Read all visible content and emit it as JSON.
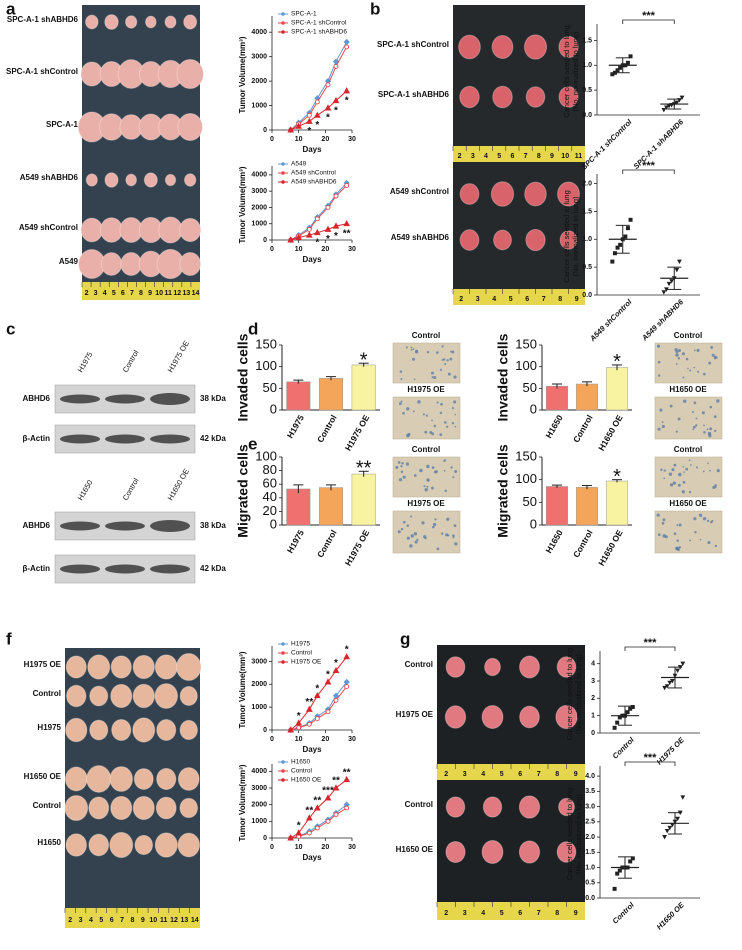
{
  "panel_labels": [
    "a",
    "b",
    "c",
    "d",
    "e",
    "f",
    "g"
  ],
  "photos": [
    {
      "labels": [
        "SPC-A-1 shABHD6",
        "SPC-A-1 shControl",
        "SPC-A-1",
        "A549 shABHD6",
        "A549 shControl",
        "A549"
      ],
      "ruler": [
        2,
        3,
        4,
        5,
        6,
        7,
        8,
        9,
        10,
        11,
        12,
        13,
        14
      ]
    },
    {
      "labels": [
        "SPC-A-1 shControl",
        "SPC-A-1 shABHD6"
      ],
      "ruler": [
        2,
        3,
        4,
        5,
        6,
        7,
        8,
        9,
        10,
        11
      ]
    },
    {
      "labels": [
        "A549 shControl",
        "A549 shABHD6"
      ],
      "ruler": [
        2,
        3,
        4,
        5,
        6,
        7,
        8,
        9
      ]
    },
    {
      "labels": [
        "H1975 OE",
        "Control",
        "H1975",
        "H1650 OE",
        "Control",
        "H1650"
      ],
      "ruler": [
        2,
        3,
        4,
        5,
        6,
        7,
        8,
        9,
        10,
        11,
        12,
        13,
        14
      ]
    },
    {
      "labels": [
        "Control",
        "H1975 OE"
      ],
      "ruler": [
        2,
        3,
        4,
        5,
        6,
        7,
        8,
        9
      ]
    },
    {
      "labels": [
        "Control",
        "H1650 OE"
      ],
      "ruler": [
        2,
        3,
        4,
        5,
        6,
        7,
        8,
        9
      ]
    }
  ],
  "blots": [
    {
      "lanes": [
        "H1975",
        "Control",
        "H1975 OE"
      ],
      "rows": [
        {
          "protein": "ABHD6",
          "size": "38 kDa"
        },
        {
          "protein": "β-Actin",
          "size": "42 kDa"
        }
      ]
    },
    {
      "lanes": [
        "H1650",
        "Control",
        "H1650 OE"
      ],
      "rows": [
        {
          "protein": "ABHD6",
          "size": "38 kDa"
        },
        {
          "protein": "β-Actin",
          "size": "42 kDa"
        }
      ]
    }
  ],
  "micrographs": [
    {
      "labels": [
        "Control",
        "H1975 OE"
      ]
    },
    {
      "labels": [
        "Control",
        "H1650 OE"
      ]
    },
    {
      "labels": [
        "Control",
        "H1975 OE"
      ]
    },
    {
      "labels": [
        "Control",
        "H1650 OE"
      ]
    }
  ],
  "chart_data": [
    {
      "type": "line",
      "ylabel": "Tumor Volume(mm³)",
      "xlabel": "Days",
      "x": [
        7,
        10,
        14,
        17,
        21,
        24,
        28
      ],
      "xlim": [
        0,
        30
      ],
      "xticks": [
        0,
        10,
        20,
        30
      ],
      "ylim": [
        0,
        4500
      ],
      "yticks": [
        0,
        1000,
        2000,
        3000,
        4000
      ],
      "series": [
        {
          "name": "SPC-A-1",
          "color": "#5b9bd5",
          "marker": "diamond",
          "values": [
            0,
            300,
            700,
            1300,
            2000,
            2800,
            3600
          ]
        },
        {
          "name": "SPC-A-1 shControl",
          "color": "#e8474c",
          "marker": "circle",
          "values": [
            0,
            250,
            600,
            1150,
            1850,
            2600,
            3400
          ]
        },
        {
          "name": "SPC-A-1 shABHD6",
          "color": "#d9262c",
          "marker": "triangle",
          "values": [
            0,
            150,
            350,
            600,
            900,
            1200,
            1600
          ],
          "significance": [
            null,
            null,
            "*",
            "*",
            "*",
            "*",
            "*"
          ]
        }
      ]
    },
    {
      "type": "line",
      "ylabel": "Tumor Volume(mm³)",
      "xlabel": "Days",
      "x": [
        7,
        10,
        14,
        17,
        21,
        24,
        28
      ],
      "xlim": [
        0,
        30
      ],
      "xticks": [
        0,
        10,
        20,
        30
      ],
      "ylim": [
        0,
        4300
      ],
      "yticks": [
        0,
        1000,
        2000,
        3000,
        4000
      ],
      "series": [
        {
          "name": "A549",
          "color": "#5b9bd5",
          "marker": "diamond",
          "values": [
            0,
            300,
            750,
            1400,
            2100,
            2800,
            3500
          ]
        },
        {
          "name": "A549 shControl",
          "color": "#e8474c",
          "marker": "circle",
          "values": [
            0,
            250,
            650,
            1300,
            2000,
            2700,
            3350
          ]
        },
        {
          "name": "A549 shABHD6",
          "color": "#d9262c",
          "marker": "triangle",
          "values": [
            0,
            150,
            300,
            450,
            650,
            850,
            1000
          ],
          "significance": [
            null,
            null,
            null,
            "*",
            "*",
            "*",
            "**"
          ]
        }
      ]
    },
    {
      "type": "dot",
      "ylabel": [
        "Cancer cells seeded to lung",
        "(No. normalized to lung)"
      ],
      "categories": [
        "SPC-A-1 shControl",
        "SPC-A-1 shABHD6"
      ],
      "points": [
        [
          0.82,
          0.85,
          0.9,
          0.95,
          1.0,
          1.0,
          1.05,
          1.18
        ],
        [
          0.1,
          0.15,
          0.18,
          0.2,
          0.22,
          0.25,
          0.3,
          0.35
        ]
      ],
      "means": [
        1.0,
        0.22
      ],
      "sd": [
        0.15,
        0.1
      ],
      "ylim": [
        0,
        1.75
      ],
      "yticks": [
        {
          "value": 0,
          "label": "0.0"
        },
        0.5,
        {
          "value": 1,
          "label": "1.0"
        },
        1.5
      ],
      "significance": "***"
    },
    {
      "type": "dot",
      "ylabel": [
        "Cancer cells seeded to lung",
        "(No. normalized to lung)"
      ],
      "categories": [
        "A549 shControl",
        "A549 shABHD6"
      ],
      "points": [
        [
          0.6,
          0.75,
          0.85,
          0.9,
          1.0,
          1.05,
          1.2,
          1.35
        ],
        [
          0.05,
          0.1,
          0.2,
          0.25,
          0.3,
          0.45,
          0.6
        ]
      ],
      "means": [
        1.0,
        0.3
      ],
      "sd": [
        0.25,
        0.2
      ],
      "ylim": [
        0,
        2.1
      ],
      "yticks": [
        {
          "value": 0,
          "label": "0.0"
        },
        0.5,
        {
          "value": 1,
          "label": "1.0"
        },
        1.5,
        {
          "value": 2,
          "label": "2.0"
        }
      ],
      "significance": "***"
    },
    {
      "type": "bar",
      "ylabel": "Invaded cells",
      "categories": [
        "H1975",
        "Control",
        "H1975 OE"
      ],
      "values": [
        65,
        73,
        104
      ],
      "errors": [
        4,
        4,
        4
      ],
      "colors": [
        "#f07070",
        "#f5a55a",
        "#f7f3a0"
      ],
      "ylim": [
        0,
        150
      ],
      "yticks": [
        0,
        50,
        100,
        150
      ],
      "significance": [
        null,
        null,
        "*"
      ]
    },
    {
      "type": "bar",
      "ylabel": "Invaded cells",
      "categories": [
        "H1650",
        "Control",
        "H1650 OE"
      ],
      "values": [
        55,
        60,
        98
      ],
      "errors": [
        5,
        5,
        6
      ],
      "colors": [
        "#f07070",
        "#f5a55a",
        "#f7f3a0"
      ],
      "ylim": [
        0,
        150
      ],
      "yticks": [
        0,
        50,
        100,
        150
      ],
      "significance": [
        null,
        null,
        "*"
      ]
    },
    {
      "type": "bar",
      "ylabel": "Migrated cells",
      "categories": [
        "H1975",
        "Control",
        "H1975 OE"
      ],
      "values": [
        53,
        55,
        75
      ],
      "errors": [
        6,
        4,
        4
      ],
      "colors": [
        "#f07070",
        "#f5a55a",
        "#f7f3a0"
      ],
      "ylim": [
        0,
        100
      ],
      "yticks": [
        0,
        20,
        40,
        60,
        80,
        100
      ],
      "significance": [
        null,
        null,
        "**"
      ]
    },
    {
      "type": "bar",
      "ylabel": "Migrated cells",
      "categories": [
        "H1650",
        "Control",
        "H1650 OE"
      ],
      "values": [
        85,
        83,
        97
      ],
      "errors": [
        3,
        4,
        3
      ],
      "colors": [
        "#f07070",
        "#f5a55a",
        "#f7f3a0"
      ],
      "ylim": [
        0,
        150
      ],
      "yticks": [
        0,
        50,
        100,
        150
      ],
      "significance": [
        null,
        null,
        "*"
      ]
    },
    {
      "type": "line",
      "ylabel": "Tumor Volume(mm³)",
      "xlabel": "Days",
      "x": [
        7,
        10,
        14,
        17,
        21,
        24,
        28
      ],
      "xlim": [
        0,
        30
      ],
      "xticks": [
        0,
        10,
        20,
        30
      ],
      "ylim": [
        0,
        3500
      ],
      "yticks": [
        0,
        1000,
        2000,
        3000
      ],
      "series": [
        {
          "name": "H1975",
          "color": "#5b9bd5",
          "marker": "diamond",
          "values": [
            0,
            100,
            300,
            600,
            900,
            1500,
            2100
          ]
        },
        {
          "name": "Control",
          "color": "#e8474c",
          "marker": "circle",
          "values": [
            0,
            100,
            250,
            500,
            800,
            1300,
            1900
          ]
        },
        {
          "name": "H1975 OE",
          "color": "#d9262c",
          "marker": "triangle",
          "values": [
            0,
            300,
            900,
            1500,
            2100,
            2600,
            3200
          ],
          "significance": [
            null,
            "*",
            "**",
            "*",
            "*",
            "*",
            "*"
          ]
        }
      ]
    },
    {
      "type": "line",
      "ylabel": "Tumor Volume(mm³)",
      "xlabel": "Days",
      "x": [
        7,
        10,
        14,
        17,
        21,
        24,
        28
      ],
      "xlim": [
        0,
        30
      ],
      "xticks": [
        0,
        10,
        20,
        30
      ],
      "ylim": [
        0,
        4200
      ],
      "yticks": [
        0,
        1000,
        2000,
        3000,
        4000
      ],
      "series": [
        {
          "name": "H1650",
          "color": "#5b9bd5",
          "marker": "diamond",
          "values": [
            0,
            100,
            400,
            700,
            1100,
            1500,
            2000
          ]
        },
        {
          "name": "Control",
          "color": "#e8474c",
          "marker": "circle",
          "values": [
            0,
            100,
            300,
            600,
            1000,
            1400,
            1800
          ]
        },
        {
          "name": "H1650 OE",
          "color": "#d9262c",
          "marker": "triangle",
          "values": [
            0,
            300,
            1200,
            1800,
            2400,
            3000,
            3500
          ],
          "significance": [
            null,
            "*",
            "**",
            "**",
            "***",
            "**",
            "**"
          ]
        }
      ]
    },
    {
      "type": "dot",
      "ylabel": [
        "Cancer cells seeded to lung",
        "(No. normalized to lung)"
      ],
      "categories": [
        "Control",
        "H1975 OE"
      ],
      "points": [
        [
          0.3,
          0.6,
          0.9,
          1.0,
          1.0,
          1.2,
          1.4,
          1.5
        ],
        [
          2.6,
          2.7,
          2.9,
          3.0,
          3.3,
          3.6,
          3.8,
          4.0
        ]
      ],
      "means": [
        1.0,
        3.2
      ],
      "sd": [
        0.55,
        0.6
      ],
      "ylim": [
        0,
        4.5
      ],
      "yticks": [
        0,
        1,
        2,
        3,
        4
      ],
      "significance": "***"
    },
    {
      "type": "dot",
      "ylabel": [
        "Cancer cells seeded to lung",
        "(No. normalized to lung)"
      ],
      "categories": [
        "Control",
        "H1650 OE"
      ],
      "points": [
        [
          0.3,
          0.8,
          0.9,
          1.0,
          1.0,
          1.0,
          1.2,
          1.3
        ],
        [
          2.0,
          2.2,
          2.3,
          2.4,
          2.5,
          2.6,
          2.8,
          3.3
        ]
      ],
      "means": [
        1.0,
        2.45
      ],
      "sd": [
        0.35,
        0.35
      ],
      "ylim": [
        0,
        4.2
      ],
      "yticks": [
        {
          "value": 0,
          "label": "0.0"
        },
        0.5,
        {
          "value": 1,
          "label": "1.0"
        },
        1.5,
        {
          "value": 2,
          "label": "2.0"
        },
        2.5,
        {
          "value": 3,
          "label": "3.0"
        },
        3.5,
        {
          "value": 4,
          "label": "4.0"
        }
      ],
      "significance": "***"
    }
  ]
}
